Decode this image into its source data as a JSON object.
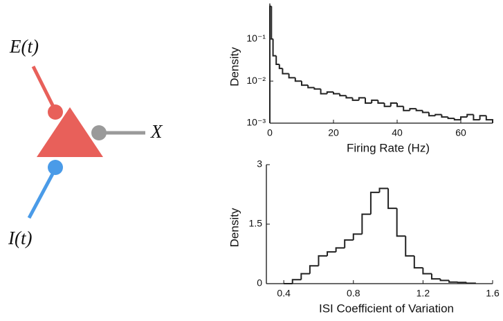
{
  "diagram": {
    "labels": [
      "E(t)",
      "I(t)",
      "X"
    ]
  },
  "chart_data": [
    {
      "type": "histogram",
      "xlabel": "Firing Rate (Hz)",
      "ylabel": "Density",
      "color": "#222222",
      "ylog": true,
      "bins": [
        0,
        0.5,
        1,
        2,
        3,
        4,
        6,
        8,
        10,
        12,
        14,
        16,
        18,
        20,
        22,
        24,
        26,
        28,
        30,
        32,
        34,
        36,
        38,
        40,
        42,
        44,
        46,
        48,
        50,
        52,
        54,
        56,
        58,
        60,
        62,
        64,
        66,
        68,
        70
      ],
      "values": [
        0.6,
        0.1,
        0.04,
        0.025,
        0.02,
        0.015,
        0.012,
        0.01,
        0.008,
        0.007,
        0.0065,
        0.005,
        0.0055,
        0.005,
        0.0045,
        0.004,
        0.0035,
        0.004,
        0.003,
        0.0035,
        0.003,
        0.0025,
        0.003,
        0.0025,
        0.002,
        0.0022,
        0.002,
        0.0018,
        0.0015,
        0.0016,
        0.0014,
        0.0013,
        0.0012,
        0.0014,
        0.0016,
        0.0012,
        0.0015,
        0.0012
      ],
      "xlim": [
        0,
        70
      ],
      "xticks": [
        0,
        20,
        40,
        60
      ],
      "ylim": [
        0.001,
        0.7
      ],
      "yticks": [
        {
          "value": 0.001,
          "label": "10⁻³"
        },
        {
          "value": 0.01,
          "label": "10⁻²"
        },
        {
          "value": 0.1,
          "label": "10⁻¹"
        }
      ]
    },
    {
      "type": "histogram",
      "xlabel": "ISI Coefficient of Variation",
      "ylabel": "Density",
      "color": "#222222",
      "ylog": false,
      "bins": [
        0.4,
        0.45,
        0.5,
        0.55,
        0.6,
        0.65,
        0.7,
        0.75,
        0.8,
        0.85,
        0.9,
        0.95,
        1.0,
        1.05,
        1.1,
        1.15,
        1.2,
        1.25,
        1.3,
        1.35,
        1.4,
        1.45,
        1.5
      ],
      "values": [
        0,
        0.1,
        0.25,
        0.45,
        0.7,
        0.8,
        0.9,
        1.1,
        1.25,
        1.75,
        2.3,
        2.4,
        1.9,
        1.2,
        0.7,
        0.4,
        0.25,
        0.12,
        0.08,
        0.04,
        0.03,
        0.01
      ],
      "xlim": [
        0.3,
        1.6
      ],
      "xticks": [
        0.4,
        0.8,
        1.2,
        1.6
      ],
      "ylim": [
        0,
        3
      ],
      "yticks": [
        0,
        1.5,
        3
      ]
    }
  ]
}
